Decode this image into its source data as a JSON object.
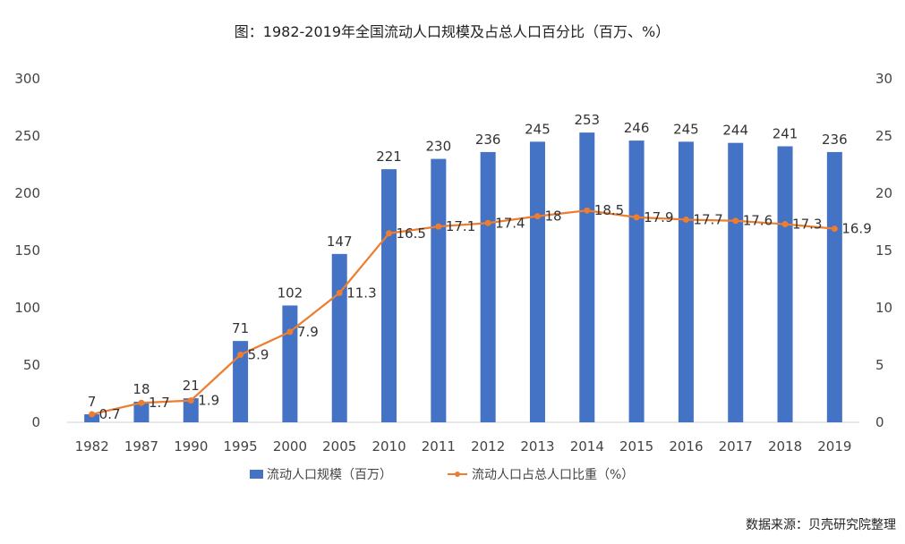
{
  "chart_data": {
    "type": "bar",
    "title": "图：1982-2019年全国流动人口规模及占总人口百分比（百万、%）",
    "source": "数据来源：贝壳研究院整理",
    "categories": [
      "1982",
      "1987",
      "1990",
      "1995",
      "2000",
      "2005",
      "2010",
      "2011",
      "2012",
      "2013",
      "2014",
      "2015",
      "2016",
      "2017",
      "2018",
      "2019"
    ],
    "series": [
      {
        "name": "流动人口规模（百万）",
        "type": "bar",
        "axis": "left",
        "color": "#4472C4",
        "values": [
          7,
          18,
          21,
          71,
          102,
          147,
          221,
          230,
          236,
          245,
          253,
          246,
          245,
          244,
          241,
          236
        ]
      },
      {
        "name": "流动人口占总人口比重（%）",
        "type": "line",
        "axis": "right",
        "color": "#ED7D31",
        "values": [
          0.7,
          1.7,
          1.9,
          5.9,
          7.9,
          11.3,
          16.5,
          17.1,
          17.4,
          18,
          18.5,
          17.9,
          17.7,
          17.6,
          17.3,
          16.9
        ]
      }
    ],
    "y_left": {
      "min": 0,
      "max": 300,
      "ticks": [
        0,
        50,
        100,
        150,
        200,
        250,
        300
      ]
    },
    "y_right": {
      "min": 0,
      "max": 30,
      "ticks": [
        0,
        5,
        10,
        15,
        20,
        25,
        30
      ]
    },
    "legend_position": "bottom",
    "grid": false
  }
}
